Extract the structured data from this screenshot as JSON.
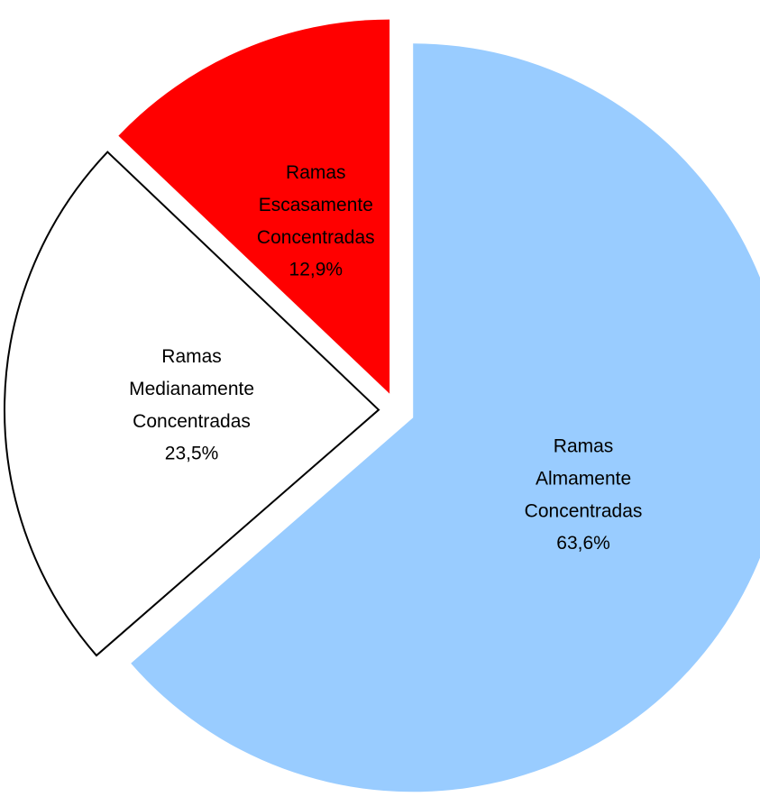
{
  "chart_data": {
    "type": "pie",
    "categories": [
      "Ramas Almamente Concentradas",
      "Ramas Medianamente Concentradas",
      "Ramas Escasamente Concentradas"
    ],
    "values": [
      63.6,
      23.5,
      12.9
    ],
    "value_labels": [
      "63,6%",
      "23,5%",
      "12,9%"
    ],
    "colors": [
      "#99ccff",
      "#ffffff",
      "#ff0000"
    ]
  }
}
